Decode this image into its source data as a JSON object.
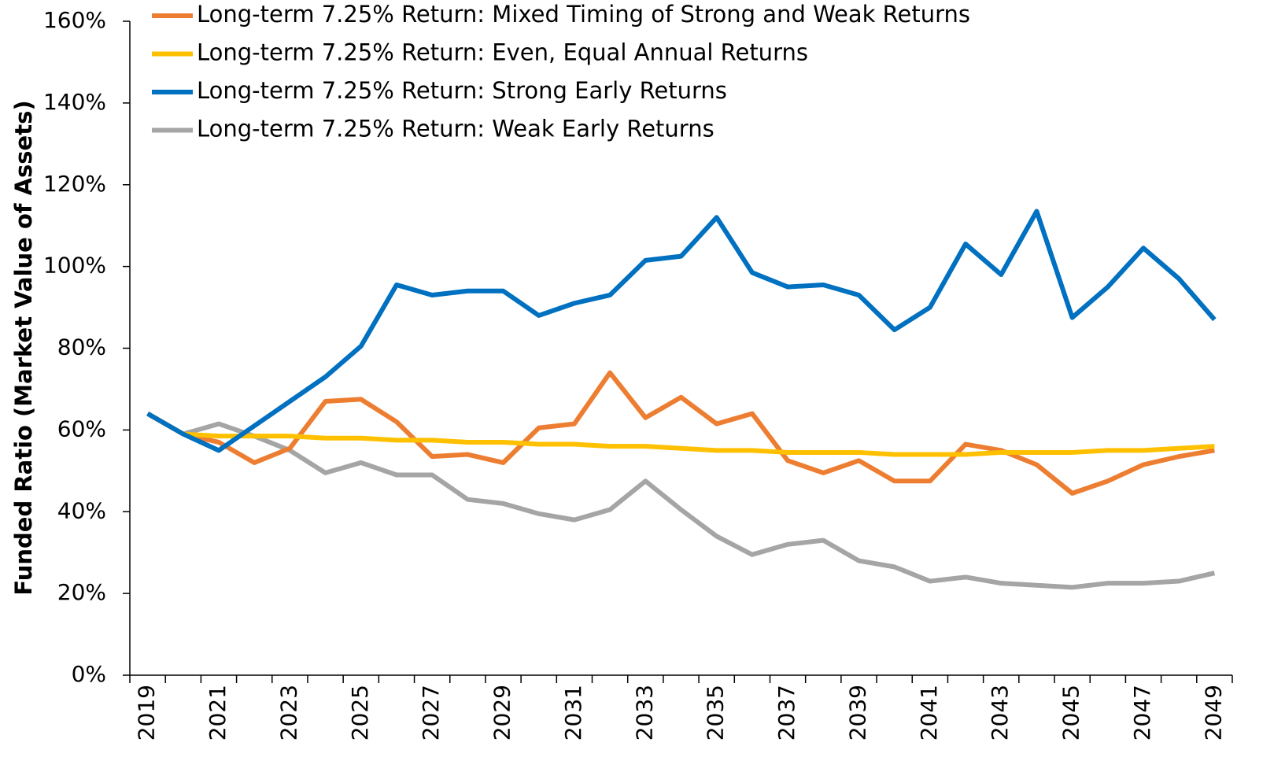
{
  "chart_data": {
    "type": "line",
    "y_label": "Funded Ratio (Market Value of Assets)",
    "categories": [
      "2019",
      null,
      "2021",
      null,
      "2023",
      null,
      "2025",
      null,
      "2027",
      null,
      "2029",
      null,
      "2031",
      null,
      "2033",
      null,
      "2035",
      null,
      "2037",
      null,
      "2039",
      null,
      "2041",
      null,
      "2043",
      null,
      "2045",
      null,
      "2047",
      null,
      "2049"
    ],
    "series": [
      {
        "name": "Long-term 7.25% Return: Mixed Timing of Strong and Weak Returns",
        "color": "#ed7d31",
        "values": [
          64,
          59,
          57,
          52,
          55.5,
          67,
          67.5,
          62,
          53.5,
          54,
          52,
          60.5,
          61.5,
          74,
          63,
          68,
          61.5,
          64,
          52.5,
          49.5,
          52.5,
          47.5,
          47.5,
          56.5,
          55,
          51.5,
          44.5,
          47.5,
          51.5,
          53.5,
          55
        ]
      },
      {
        "name": "Long-term 7.25% Return: Even, Equal Annual Returns",
        "color": "#ffc000",
        "values": [
          64,
          59,
          58.5,
          58.5,
          58.5,
          58,
          58,
          57.5,
          57.5,
          57,
          57,
          56.5,
          56.5,
          56,
          56,
          55.5,
          55,
          55,
          54.5,
          54.5,
          54.5,
          54,
          54,
          54,
          54.5,
          54.5,
          54.5,
          55,
          55,
          55.5,
          56
        ]
      },
      {
        "name": "Long-term 7.25% Return: Strong Early Returns",
        "color": "#0070c0",
        "values": [
          64,
          59,
          55,
          61,
          67,
          73,
          80.5,
          95.5,
          93,
          94,
          94,
          88,
          91,
          93,
          101.5,
          102.5,
          112,
          98.5,
          95,
          95.5,
          93,
          84.5,
          90,
          105.5,
          98,
          113.5,
          87.5,
          95,
          104.5,
          97,
          87
        ]
      },
      {
        "name": "Long-term 7.25% Return: Weak Early Returns",
        "color": "#a5a5a5",
        "values": [
          64,
          59,
          61.5,
          58.5,
          55,
          49.5,
          52,
          49,
          49,
          43,
          42,
          39.5,
          38,
          40.5,
          47.5,
          40.5,
          34,
          29.5,
          32,
          33,
          28,
          26.5,
          23,
          24,
          22.5,
          22,
          21.5,
          22.5,
          22.5,
          23,
          25
        ]
      }
    ],
    "ylim": [
      0,
      160
    ],
    "yticks": [
      {
        "value": 0,
        "label": "0%"
      },
      {
        "value": 20,
        "label": "20%"
      },
      {
        "value": 40,
        "label": "40%"
      },
      {
        "value": 60,
        "label": "60%"
      },
      {
        "value": 80,
        "label": "80%"
      },
      {
        "value": 100,
        "label": "100%"
      },
      {
        "value": 120,
        "label": "120%"
      },
      {
        "value": 140,
        "label": "140%"
      },
      {
        "value": 160,
        "label": "160%"
      }
    ],
    "grid": false,
    "legend": "top-left"
  }
}
